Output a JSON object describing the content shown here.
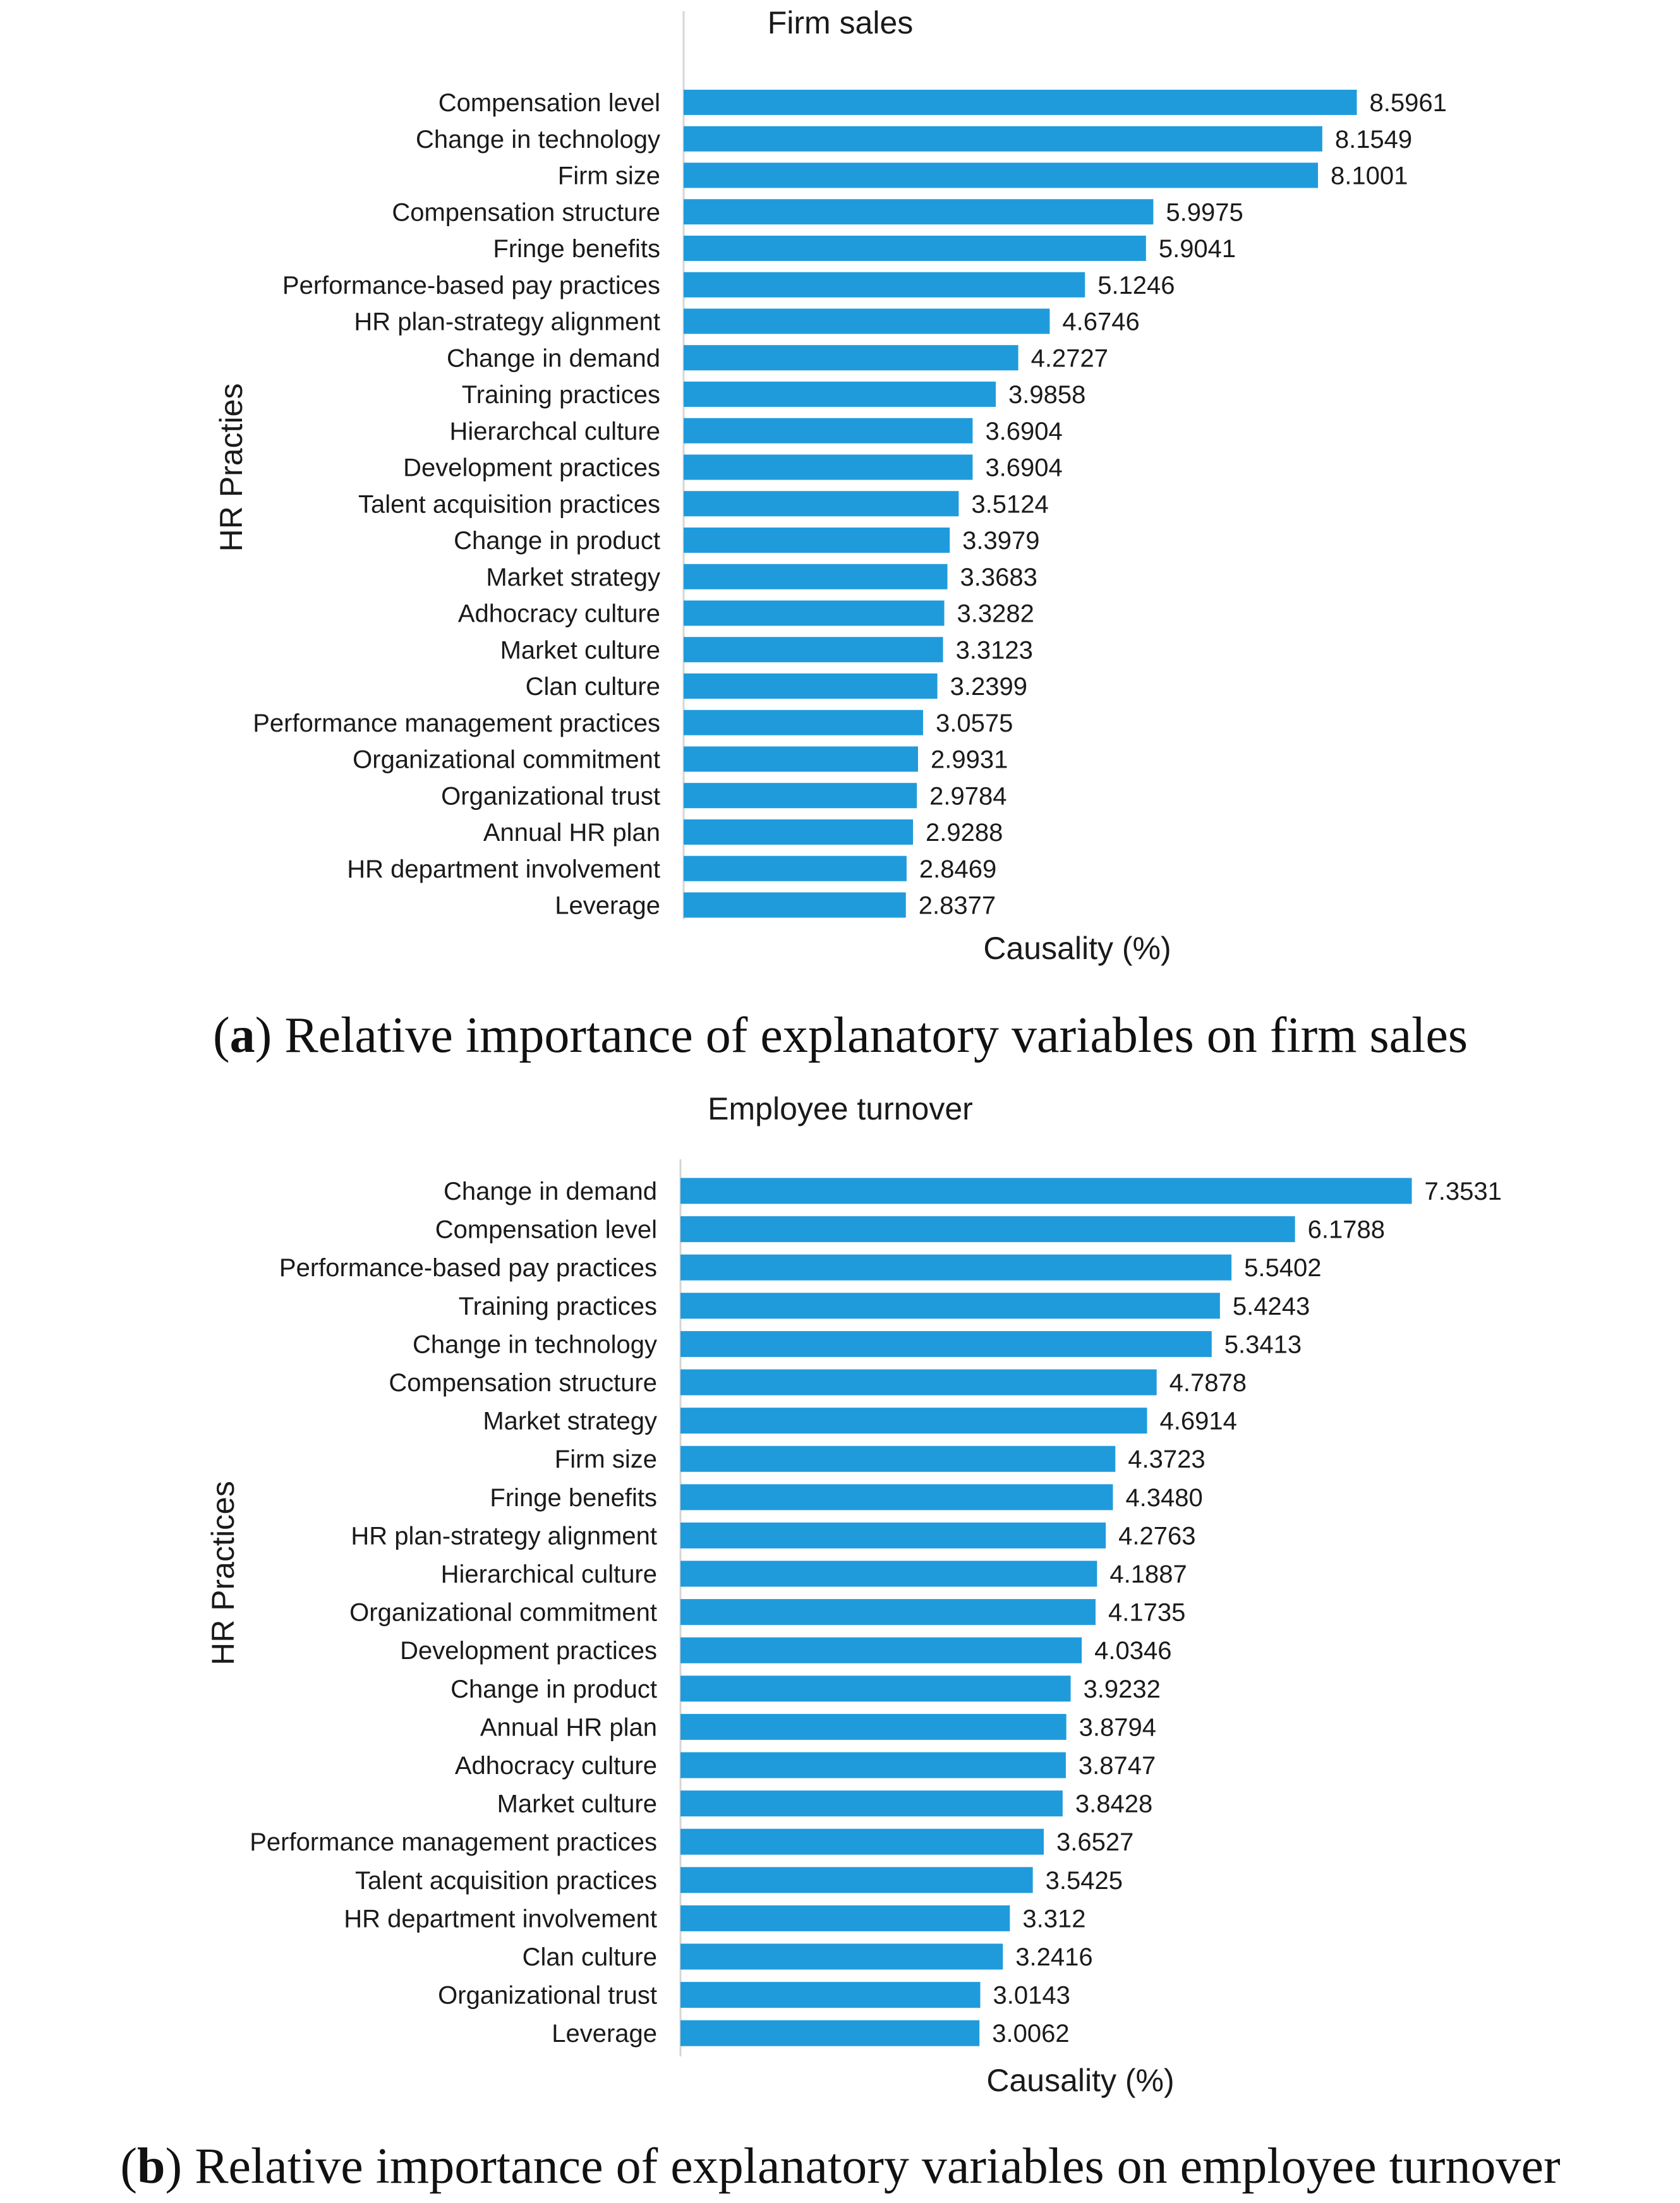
{
  "colors": {
    "bar": "#1f9bdc",
    "text": "#1a1a1a",
    "axis": "#d6d6d6"
  },
  "chart_data": [
    {
      "type": "bar",
      "orientation": "horizontal",
      "title": "Firm sales",
      "xlabel": "Causality (%)",
      "ylabel": "HR Practies",
      "xlim": [
        0,
        8.6
      ],
      "caption": {
        "letter": "a",
        "text": "Relative importance of explanatory variables on firm sales"
      },
      "categories": [
        "Compensation level",
        "Change in technology",
        "Firm size",
        "Compensation structure",
        "Fringe benefits",
        "Performance-based pay practices",
        "HR plan-strategy alignment",
        "Change in demand",
        "Training practices",
        "Hierarchcal culture",
        "Development practices",
        "Talent acquisition practices",
        "Change in product",
        "Market strategy",
        "Adhocracy culture",
        "Market culture",
        "Clan culture",
        "Performance management practices",
        "Organizational commitment",
        "Organizational trust",
        "Annual HR plan",
        "HR department involvement",
        "Leverage"
      ],
      "values": [
        8.5961,
        8.1549,
        8.1001,
        5.9975,
        5.9041,
        5.1246,
        4.6746,
        4.2727,
        3.9858,
        3.6904,
        3.6904,
        3.5124,
        3.3979,
        3.3683,
        3.3282,
        3.3123,
        3.2399,
        3.0575,
        2.9931,
        2.9784,
        2.9288,
        2.8469,
        2.8377
      ],
      "value_labels": [
        "8.5961",
        "8.1549",
        "8.1001",
        "5.9975",
        "5.9041",
        "5.1246",
        "4.6746",
        "4.2727",
        "3.9858",
        "3.6904",
        "3.6904",
        "3.5124",
        "3.3979",
        "3.3683",
        "3.3282",
        "3.3123",
        "3.2399",
        "3.0575",
        "2.9931",
        "2.9784",
        "2.9288",
        "2.8469",
        "2.8377"
      ]
    },
    {
      "type": "bar",
      "orientation": "horizontal",
      "title": "Employee turnover",
      "xlabel": "Causality (%)",
      "ylabel": "HR Practices",
      "xlim": [
        0,
        7.35
      ],
      "caption": {
        "letter": "b",
        "text": "Relative importance of explanatory variables on employee turnover"
      },
      "categories": [
        "Change in demand",
        "Compensation level",
        "Performance-based pay practices",
        "Training practices",
        "Change in technology",
        "Compensation structure",
        "Market strategy",
        "Firm size",
        "Fringe benefits",
        "HR plan-strategy alignment",
        "Hierarchical culture",
        "Organizational commitment",
        "Development practices",
        "Change in product",
        "Annual HR plan",
        "Adhocracy culture",
        "Market culture",
        "Performance management practices",
        "Talent acquisition practices",
        "HR department involvement",
        "Clan culture",
        "Organizational trust",
        "Leverage"
      ],
      "values": [
        7.3531,
        6.1788,
        5.5402,
        5.4243,
        5.3413,
        4.7878,
        4.6914,
        4.3723,
        4.348,
        4.2763,
        4.1887,
        4.1735,
        4.0346,
        3.9232,
        3.8794,
        3.8747,
        3.8428,
        3.6527,
        3.5425,
        3.312,
        3.2416,
        3.0143,
        3.0062
      ],
      "value_labels": [
        "7.3531",
        "6.1788",
        "5.5402",
        "5.4243",
        "5.3413",
        "4.7878",
        "4.6914",
        "4.3723",
        "4.3480",
        "4.2763",
        "4.1887",
        "4.1735",
        "4.0346",
        "3.9232",
        "3.8794",
        "3.8747",
        "3.8428",
        "3.6527",
        "3.5425",
        "3.312",
        "3.2416",
        "3.0143",
        "3.0062"
      ]
    }
  ]
}
